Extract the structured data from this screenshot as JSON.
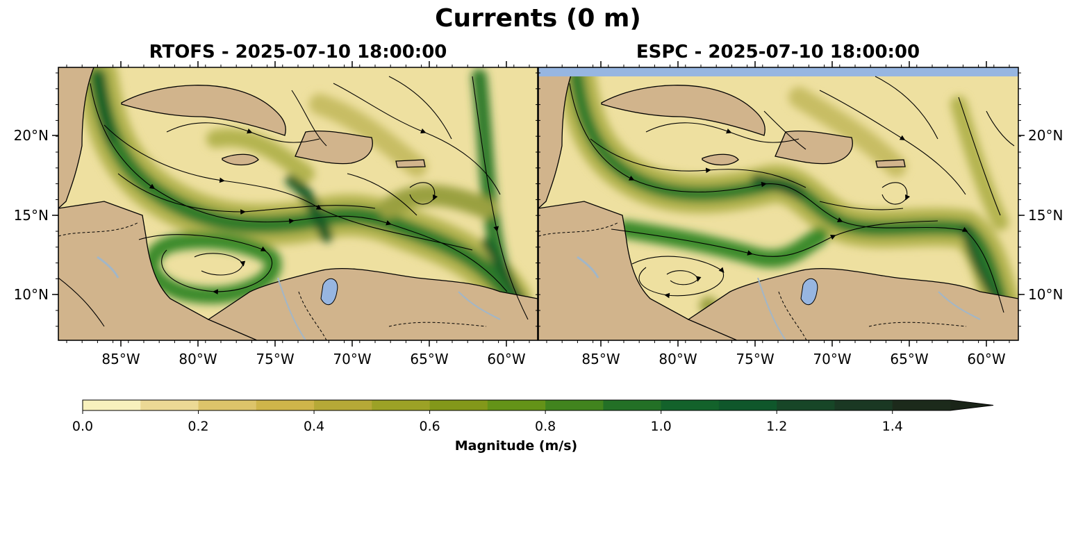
{
  "figure": {
    "title": "Currents (0 m)",
    "left_panel_title": "RTOFS - 2025-07-10 18:00:00",
    "right_panel_title": "ESPC - 2025-07-10 18:00:00"
  },
  "axes": {
    "lon_ticks": [
      "85°W",
      "80°W",
      "75°W",
      "70°W",
      "65°W",
      "60°W"
    ],
    "lat_ticks": [
      "20°N",
      "15°N",
      "10°N"
    ]
  },
  "colorbar": {
    "label": "Magnitude (m/s)",
    "ticks": [
      "0.0",
      "0.2",
      "0.4",
      "0.6",
      "0.8",
      "1.0",
      "1.2",
      "1.4"
    ],
    "colors": [
      "#f8f1bd",
      "#ecd995",
      "#ddc46a",
      "#cfb54a",
      "#b6a937",
      "#9ca226",
      "#83981a",
      "#649318",
      "#41841e",
      "#237026",
      "#13622b",
      "#0f572b",
      "#174627",
      "#1a3823",
      "#1c2a1b"
    ],
    "extend_color": "#1a2418"
  },
  "colors": {
    "land": "#d1b48c",
    "lake": "#97b6e1",
    "river": "#a2b6c7",
    "ocean_low": "#eee0a0",
    "current_mid": "#b4b450",
    "current_strong": "#2f7a2c",
    "current_core": "#125a28"
  }
}
